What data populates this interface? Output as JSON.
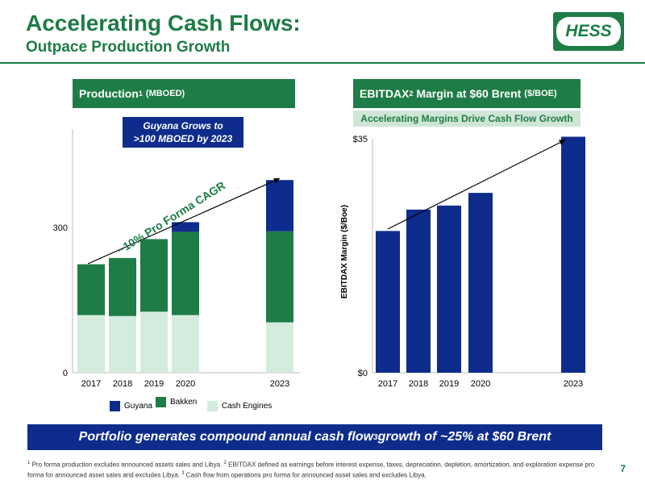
{
  "header": {
    "title": "Accelerating Cash Flows:",
    "subtitle": "Outpace Production Growth",
    "logo_text": "HESS"
  },
  "colors": {
    "green": "#1e7c46",
    "navy": "#0d2c8c",
    "light_green": "#d3ecdd"
  },
  "left_panel": {
    "heading_main": "Production",
    "heading_sup": "1",
    "heading_unit": "(MBOED)",
    "callout_line1": "Guyana Grows to",
    "callout_line2": ">100 MBOED by 2023",
    "trend_label": "~10% Pro Forma CAGR"
  },
  "right_panel": {
    "heading_main": "EBITDAX",
    "heading_sup": "2",
    "heading_rest": "Margin at $60 Brent",
    "heading_unit": "($/BOE)",
    "note": "Accelerating Margins Drive Cash Flow Growth"
  },
  "banner": {
    "text_before": "Portfolio generates compound annual cash flow",
    "sup": "3",
    "text_after": " growth of ~25% at $60 Brent"
  },
  "footnote": {
    "s1": "1",
    "t1": " Pro forma production excludes announced assets sales and Libya. ",
    "s2": "2",
    "t2": " EBITDAX defined as earnings before interest expense, taxes, depreciation, depletion, amortization, and exploration expense pro forma for announced asset sales and excludes Libya. ",
    "s3": "3",
    "t3": " Cash flow from operations pro forma for announced asset sales and excludes Libya."
  },
  "page_number": "7",
  "chart_data": [
    {
      "type": "bar",
      "stacked": true,
      "categories": [
        "2017",
        "2018",
        "2019",
        "2020",
        "2023"
      ],
      "series": [
        {
          "name": "Cash  Engines",
          "color": "#d3ecdd",
          "values": [
            119,
            117,
            126,
            119,
            104
          ]
        },
        {
          "name": "Bakken",
          "color": "#1e7c46",
          "values": [
            105,
            120,
            150,
            172,
            188
          ]
        },
        {
          "name": "Guyana",
          "color": "#0d2c8c",
          "values": [
            0,
            0,
            0,
            20,
            106
          ]
        }
      ],
      "yticks": [
        "0",
        "300"
      ],
      "ylim": [
        0,
        500
      ],
      "trend": {
        "from": [
          0,
          225
        ],
        "to": [
          4,
          398
        ]
      },
      "legend": "bottom"
    },
    {
      "type": "bar",
      "categories": [
        "2017",
        "2018",
        "2019",
        "2020",
        "2023"
      ],
      "values": [
        21.2,
        24.4,
        25.0,
        26.9,
        35.3
      ],
      "color": "#0d2c8c",
      "yticks": [
        "$0",
        "$35"
      ],
      "ylim": [
        0,
        35
      ],
      "ylabel": "EBITDAX Margin  ($/Boe)",
      "trend": {
        "from": [
          0,
          21.5
        ],
        "to": [
          4,
          35.3
        ]
      }
    }
  ]
}
